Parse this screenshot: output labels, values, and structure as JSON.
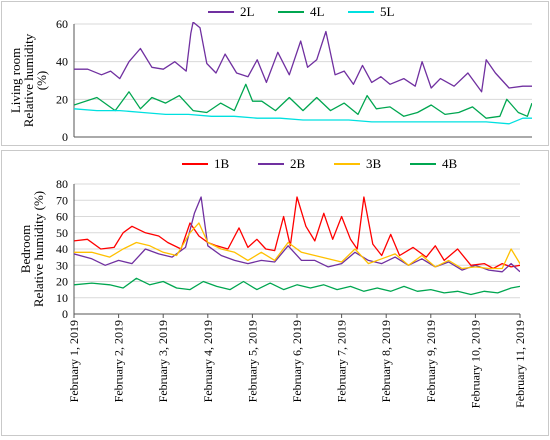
{
  "colors": {
    "2L": "#7030a0",
    "4L": "#00a650",
    "5L": "#00e0e0",
    "1B": "#ff0000",
    "2B": "#7030a0",
    "3B": "#ffc000",
    "4B": "#00a650",
    "grid": "#d9d9d9"
  },
  "chart_data": [
    {
      "type": "line",
      "ylabel_lines": [
        "Living room",
        "Relative humidity",
        "(%)"
      ],
      "ylim": [
        0,
        60
      ],
      "yticks": [
        "0",
        "20",
        "40",
        "60"
      ],
      "x_unit": "days since February 1, 2019 00:00",
      "xlim": [
        0,
        10
      ],
      "grid": "horizontal",
      "legend_position": "top",
      "series": [
        {
          "name": "2L",
          "x": [
            0,
            0.3,
            0.6,
            0.8,
            1.0,
            1.2,
            1.45,
            1.7,
            1.95,
            2.2,
            2.45,
            2.55,
            2.6,
            2.75,
            2.9,
            3.1,
            3.3,
            3.55,
            3.8,
            4.0,
            4.2,
            4.45,
            4.7,
            4.95,
            5.1,
            5.3,
            5.5,
            5.7,
            5.9,
            6.1,
            6.3,
            6.5,
            6.7,
            6.9,
            7.2,
            7.45,
            7.6,
            7.8,
            8.0,
            8.3,
            8.6,
            8.9,
            9.0,
            9.2,
            9.5,
            9.8,
            10.0
          ],
          "values": [
            36,
            36,
            33,
            35,
            31,
            40,
            47,
            37,
            36,
            40,
            35,
            55,
            61,
            58,
            39,
            34,
            44,
            34,
            32,
            41,
            29,
            45,
            33,
            51,
            37,
            41,
            56,
            33,
            35,
            28,
            38,
            29,
            32,
            28,
            31,
            27,
            40,
            26,
            31,
            27,
            34,
            24,
            41,
            34,
            26,
            27,
            27
          ]
        },
        {
          "name": "4L",
          "x": [
            0,
            0.5,
            0.9,
            1.2,
            1.45,
            1.7,
            2.0,
            2.3,
            2.6,
            2.9,
            3.2,
            3.5,
            3.75,
            3.9,
            4.1,
            4.4,
            4.7,
            5.0,
            5.3,
            5.6,
            5.9,
            6.2,
            6.4,
            6.6,
            6.9,
            7.2,
            7.5,
            7.8,
            8.1,
            8.4,
            8.7,
            9.0,
            9.3,
            9.45,
            9.7,
            9.9,
            10.0
          ],
          "values": [
            17,
            21,
            14,
            24,
            15,
            21,
            18,
            22,
            14,
            13,
            18,
            14,
            28,
            19,
            19,
            14,
            21,
            14,
            21,
            14,
            18,
            12,
            22,
            15,
            16,
            11,
            13,
            17,
            12,
            13,
            16,
            10,
            11,
            20,
            13,
            11,
            18
          ]
        },
        {
          "name": "5L",
          "x": [
            0,
            0.5,
            1.0,
            1.5,
            2.0,
            2.5,
            3.0,
            3.5,
            4.0,
            4.5,
            5.0,
            5.5,
            6.0,
            6.5,
            7.0,
            7.5,
            8.0,
            8.5,
            9.0,
            9.5,
            9.8,
            10.0
          ],
          "values": [
            15,
            14,
            14,
            13,
            12,
            12,
            11,
            11,
            10,
            10,
            9,
            9,
            9,
            8,
            8,
            8,
            8,
            8,
            8,
            7,
            10,
            10
          ]
        }
      ]
    },
    {
      "type": "line",
      "ylabel_lines": [
        "Bedroom",
        "Relative humidity (%)"
      ],
      "ylim": [
        0,
        80
      ],
      "yticks": [
        "0",
        "10",
        "20",
        "30",
        "40",
        "50",
        "60",
        "70",
        "80"
      ],
      "x_unit": "days since February 1, 2019 00:00",
      "xlim": [
        0,
        10
      ],
      "xticks": [
        "February 1, 2019",
        "February 2, 2019",
        "February 3, 2019",
        "February 4, 2019",
        "February 5, 2019",
        "February 6, 2019",
        "February 7, 2019",
        "February 8, 2019",
        "February 9, 2019",
        "February 10, 2019",
        "February 11, 2019"
      ],
      "grid": "horizontal",
      "legend_position": "top",
      "series": [
        {
          "name": "1B",
          "x": [
            0,
            0.3,
            0.6,
            0.9,
            1.1,
            1.3,
            1.6,
            1.9,
            2.1,
            2.4,
            2.6,
            2.8,
            3.0,
            3.2,
            3.45,
            3.7,
            3.9,
            4.1,
            4.3,
            4.5,
            4.7,
            4.85,
            5.0,
            5.2,
            5.4,
            5.6,
            5.8,
            6.0,
            6.2,
            6.35,
            6.5,
            6.7,
            6.9,
            7.1,
            7.3,
            7.6,
            7.9,
            8.1,
            8.3,
            8.6,
            8.9,
            9.2,
            9.4,
            9.6,
            9.8,
            10.0
          ],
          "values": [
            45,
            46,
            40,
            41,
            50,
            54,
            50,
            48,
            44,
            40,
            56,
            48,
            44,
            42,
            40,
            53,
            41,
            46,
            40,
            39,
            60,
            42,
            72,
            54,
            45,
            62,
            46,
            60,
            46,
            40,
            72,
            43,
            36,
            49,
            36,
            41,
            35,
            42,
            33,
            40,
            30,
            31,
            28,
            31,
            29,
            30
          ]
        },
        {
          "name": "2B",
          "x": [
            0,
            0.4,
            0.7,
            1.0,
            1.3,
            1.6,
            1.9,
            2.2,
            2.5,
            2.7,
            2.85,
            3.0,
            3.3,
            3.6,
            3.9,
            4.2,
            4.5,
            4.8,
            5.1,
            5.4,
            5.7,
            6.0,
            6.3,
            6.6,
            6.9,
            7.2,
            7.5,
            7.8,
            8.1,
            8.4,
            8.7,
            9.0,
            9.3,
            9.6,
            9.8,
            10.0
          ],
          "values": [
            37,
            34,
            30,
            33,
            31,
            40,
            37,
            35,
            41,
            62,
            72,
            42,
            36,
            33,
            31,
            33,
            32,
            42,
            33,
            33,
            29,
            31,
            38,
            33,
            31,
            35,
            30,
            34,
            29,
            32,
            27,
            30,
            27,
            26,
            31,
            26
          ]
        },
        {
          "name": "3B",
          "x": [
            0,
            0.4,
            0.8,
            1.1,
            1.4,
            1.7,
            2.0,
            2.3,
            2.6,
            2.8,
            3.0,
            3.3,
            3.6,
            3.9,
            4.2,
            4.5,
            4.8,
            5.1,
            5.4,
            5.7,
            6.0,
            6.3,
            6.6,
            6.9,
            7.2,
            7.5,
            7.8,
            8.1,
            8.4,
            8.7,
            9.0,
            9.3,
            9.6,
            9.8,
            10.0
          ],
          "values": [
            38,
            38,
            35,
            40,
            44,
            42,
            38,
            36,
            50,
            56,
            44,
            40,
            38,
            33,
            38,
            33,
            44,
            38,
            36,
            34,
            32,
            40,
            31,
            34,
            37,
            30,
            36,
            29,
            33,
            28,
            29,
            28,
            28,
            40,
            31
          ]
        },
        {
          "name": "4B",
          "x": [
            0,
            0.4,
            0.8,
            1.1,
            1.4,
            1.7,
            2.0,
            2.3,
            2.6,
            2.9,
            3.2,
            3.5,
            3.8,
            4.1,
            4.4,
            4.7,
            5.0,
            5.3,
            5.6,
            5.9,
            6.2,
            6.5,
            6.8,
            7.1,
            7.4,
            7.7,
            8.0,
            8.3,
            8.6,
            8.9,
            9.2,
            9.5,
            9.8,
            10.0
          ],
          "values": [
            18,
            19,
            18,
            16,
            22,
            18,
            20,
            16,
            15,
            20,
            17,
            15,
            20,
            15,
            19,
            15,
            18,
            16,
            18,
            15,
            17,
            14,
            16,
            14,
            17,
            14,
            15,
            13,
            14,
            12,
            14,
            13,
            16,
            17
          ]
        }
      ]
    }
  ]
}
